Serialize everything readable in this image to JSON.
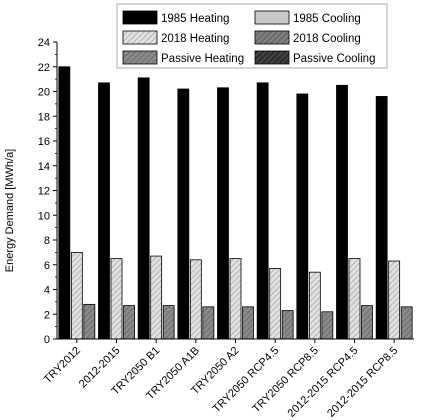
{
  "chart_data": {
    "type": "bar",
    "title": "",
    "xlabel": "",
    "ylabel": "Energy Demand [MWh/a]",
    "ylim": [
      0,
      24
    ],
    "yticks": [
      0,
      2,
      4,
      6,
      8,
      10,
      12,
      14,
      16,
      18,
      20,
      22,
      24
    ],
    "grid": false,
    "legend_placement": "top",
    "categories": [
      "TRY2012",
      "2012-2015",
      "TRY2050 B1",
      "TRY2050 A1B",
      "TRY2050 A2",
      "TRY2050 RCP4.5",
      "TRY2050 RCP8.5",
      "2012-2015 RCP4.5",
      "2012-2015 RCP8.5"
    ],
    "series": [
      {
        "name": "1985 Heating",
        "color": "#000000",
        "pattern": "solid",
        "values": [
          22.0,
          20.7,
          21.1,
          20.2,
          20.3,
          20.7,
          19.8,
          20.5,
          19.6
        ]
      },
      {
        "name": "1985 Cooling",
        "color": "#c8c8c8",
        "pattern": "solid",
        "values": [
          0,
          0,
          0,
          0,
          0,
          0,
          0,
          0,
          0
        ]
      },
      {
        "name": "2018 Heating",
        "color": "#d6d6d6",
        "pattern": "hatch",
        "values": [
          7.0,
          6.5,
          6.7,
          6.4,
          6.5,
          5.7,
          5.4,
          6.5,
          6.3
        ]
      },
      {
        "name": "2018 Cooling",
        "color": "#7a7a7a",
        "pattern": "hatch",
        "values": [
          0,
          0,
          0,
          0,
          0,
          0,
          0,
          0,
          0
        ]
      },
      {
        "name": "Passive Heating",
        "color": "#8a8a8a",
        "pattern": "hatch",
        "values": [
          2.8,
          2.7,
          2.7,
          2.6,
          2.6,
          2.3,
          2.2,
          2.7,
          2.6
        ]
      },
      {
        "name": "Passive Cooling",
        "color": "#404040",
        "pattern": "hatch",
        "values": [
          0,
          0,
          0,
          0,
          0,
          0,
          0,
          0,
          0
        ]
      }
    ]
  }
}
